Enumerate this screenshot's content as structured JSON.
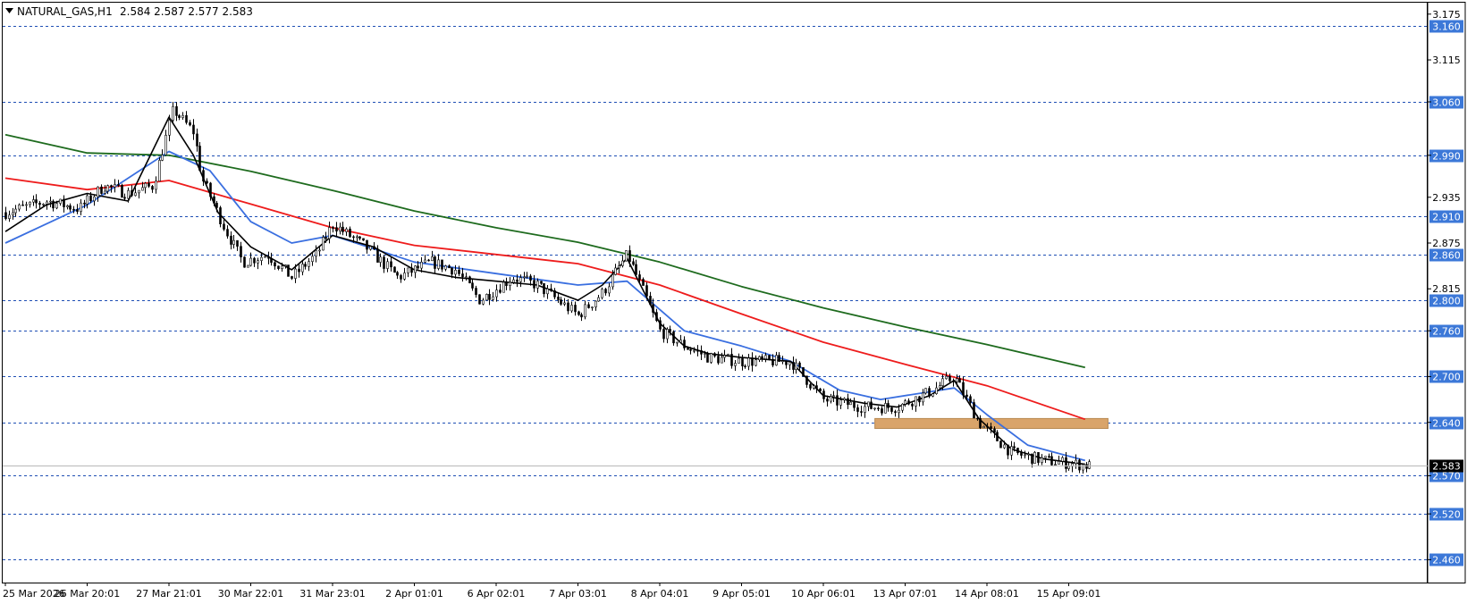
{
  "header": {
    "symbol": "NATURAL_GAS,H1",
    "ohlc": "2.584 2.587 2.577 2.583",
    "menu_icon": "triangle-down-icon"
  },
  "colors": {
    "background": "#ffffff",
    "candle": "#000000",
    "level_line": "#1f4fb4",
    "level_label_bg": "#3c78d8",
    "fast_ma": "#000000",
    "mid_ma": "#3a6fe0",
    "slow_ma": "#ee1c1c",
    "long_ma": "#1e6b1e",
    "zone_fill": "#d9a46a",
    "current_price_label_bg": "#000000",
    "current_price_line": "#b8b8b8"
  },
  "chart_data": {
    "type": "candlestick",
    "ylim": [
      2.43,
      3.19
    ],
    "y_ticks": [
      "3.175",
      "3.115",
      "3.060",
      "2.990",
      "2.935",
      "2.875",
      "2.815",
      "2.760",
      "2.700",
      "2.640",
      "2.570",
      "2.520",
      "2.460"
    ],
    "x_tick_labels": [
      "25 Mar 2026",
      "26 Mar 20:01",
      "27 Mar 21:01",
      "30 Mar 22:01",
      "31 Mar 23:01",
      "2 Apr 01:01",
      "6 Apr 02:01",
      "7 Apr 03:01",
      "8 Apr 04:01",
      "9 Apr 05:01",
      "10 Apr 06:01",
      "13 Apr 07:01",
      "14 Apr 08:01",
      "15 Apr 09:01"
    ],
    "horizontal_levels": [
      3.16,
      3.06,
      2.99,
      2.91,
      2.86,
      2.8,
      2.76,
      2.7,
      2.64,
      2.57,
      2.52,
      2.46
    ],
    "level_labels": [
      "3.160",
      "3.060",
      "2.990",
      "2.910",
      "2.860",
      "2.800",
      "2.760",
      "2.700",
      "2.640",
      "2.570",
      "2.520",
      "2.460"
    ],
    "current_price": 2.583,
    "current_price_label": "2.583",
    "zone": {
      "x_start": 10.63,
      "x_end": 13.48,
      "low": 2.632,
      "high": 2.645
    },
    "price_path": [
      [
        0.0,
        2.915
      ],
      [
        0.5,
        2.93
      ],
      [
        0.9,
        2.92
      ],
      [
        1.2,
        2.95
      ],
      [
        1.5,
        2.94
      ],
      [
        1.8,
        2.95
      ],
      [
        2.05,
        3.05
      ],
      [
        2.3,
        3.02
      ],
      [
        2.4,
        2.96
      ],
      [
        2.7,
        2.89
      ],
      [
        2.9,
        2.85
      ],
      [
        3.2,
        2.86
      ],
      [
        3.5,
        2.83
      ],
      [
        3.8,
        2.86
      ],
      [
        4.0,
        2.9
      ],
      [
        4.4,
        2.87
      ],
      [
        4.8,
        2.83
      ],
      [
        5.2,
        2.85
      ],
      [
        5.5,
        2.84
      ],
      [
        5.8,
        2.8
      ],
      [
        6.2,
        2.83
      ],
      [
        6.5,
        2.82
      ],
      [
        7.0,
        2.78
      ],
      [
        7.3,
        2.81
      ],
      [
        7.6,
        2.86
      ],
      [
        8.0,
        2.76
      ],
      [
        8.3,
        2.74
      ],
      [
        8.6,
        2.725
      ],
      [
        9.0,
        2.72
      ],
      [
        9.6,
        2.72
      ],
      [
        10.0,
        2.67
      ],
      [
        10.5,
        2.66
      ],
      [
        10.9,
        2.66
      ],
      [
        11.3,
        2.68
      ],
      [
        11.6,
        2.7
      ],
      [
        11.9,
        2.64
      ],
      [
        12.3,
        2.6
      ],
      [
        12.7,
        2.59
      ],
      [
        13.1,
        2.585
      ],
      [
        13.25,
        2.583
      ]
    ],
    "series": [
      {
        "name": "",
        "color_key": "long_ma",
        "points": [
          [
            0.0,
            3.017
          ],
          [
            1.0,
            2.993
          ],
          [
            2.0,
            2.99
          ],
          [
            3.0,
            2.969
          ],
          [
            4.0,
            2.944
          ],
          [
            5.0,
            2.917
          ],
          [
            6.0,
            2.895
          ],
          [
            7.0,
            2.876
          ],
          [
            8.0,
            2.85
          ],
          [
            9.0,
            2.818
          ],
          [
            10.0,
            2.79
          ],
          [
            11.0,
            2.765
          ],
          [
            12.0,
            2.742
          ],
          [
            13.2,
            2.712
          ]
        ]
      },
      {
        "name": "",
        "color_key": "slow_ma",
        "points": [
          [
            0.0,
            2.96
          ],
          [
            1.0,
            2.945
          ],
          [
            2.0,
            2.957
          ],
          [
            3.0,
            2.926
          ],
          [
            4.0,
            2.895
          ],
          [
            5.0,
            2.872
          ],
          [
            6.0,
            2.86
          ],
          [
            7.0,
            2.848
          ],
          [
            8.0,
            2.82
          ],
          [
            9.0,
            2.782
          ],
          [
            10.0,
            2.745
          ],
          [
            11.0,
            2.716
          ],
          [
            12.0,
            2.688
          ],
          [
            13.2,
            2.644
          ]
        ]
      },
      {
        "name": "",
        "color_key": "mid_ma",
        "points": [
          [
            0.0,
            2.875
          ],
          [
            1.0,
            2.925
          ],
          [
            2.0,
            2.995
          ],
          [
            2.5,
            2.97
          ],
          [
            3.0,
            2.903
          ],
          [
            3.5,
            2.875
          ],
          [
            4.0,
            2.885
          ],
          [
            5.0,
            2.85
          ],
          [
            6.0,
            2.835
          ],
          [
            7.0,
            2.82
          ],
          [
            7.6,
            2.825
          ],
          [
            8.3,
            2.76
          ],
          [
            9.0,
            2.74
          ],
          [
            9.6,
            2.72
          ],
          [
            10.2,
            2.682
          ],
          [
            10.7,
            2.67
          ],
          [
            11.3,
            2.68
          ],
          [
            11.6,
            2.685
          ],
          [
            12.0,
            2.65
          ],
          [
            12.5,
            2.61
          ],
          [
            13.2,
            2.59
          ]
        ]
      },
      {
        "name": "",
        "color_key": "fast_ma",
        "points": [
          [
            0.0,
            2.89
          ],
          [
            0.5,
            2.925
          ],
          [
            1.0,
            2.94
          ],
          [
            1.5,
            2.93
          ],
          [
            2.0,
            3.04
          ],
          [
            2.3,
            2.99
          ],
          [
            2.6,
            2.915
          ],
          [
            3.0,
            2.87
          ],
          [
            3.5,
            2.84
          ],
          [
            4.0,
            2.885
          ],
          [
            4.5,
            2.87
          ],
          [
            5.0,
            2.84
          ],
          [
            5.5,
            2.83
          ],
          [
            6.0,
            2.825
          ],
          [
            6.5,
            2.82
          ],
          [
            7.0,
            2.8
          ],
          [
            7.3,
            2.82
          ],
          [
            7.6,
            2.855
          ],
          [
            8.0,
            2.77
          ],
          [
            8.3,
            2.74
          ],
          [
            8.6,
            2.73
          ],
          [
            9.0,
            2.725
          ],
          [
            9.6,
            2.72
          ],
          [
            10.0,
            2.675
          ],
          [
            10.5,
            2.665
          ],
          [
            10.9,
            2.66
          ],
          [
            11.3,
            2.675
          ],
          [
            11.6,
            2.695
          ],
          [
            11.9,
            2.645
          ],
          [
            12.3,
            2.605
          ],
          [
            12.7,
            2.592
          ],
          [
            13.2,
            2.585
          ]
        ]
      }
    ]
  }
}
